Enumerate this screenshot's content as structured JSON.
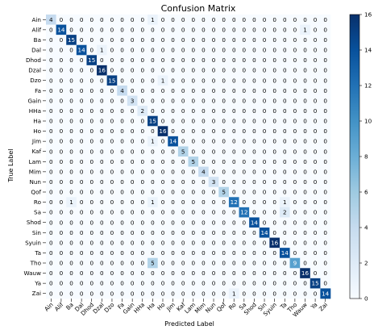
{
  "chart_data": {
    "type": "heatmap",
    "title": "Confusion Matrix",
    "xlabel": "Predicted Label",
    "ylabel": "True Label",
    "labels": [
      "Ain",
      "Alif",
      "Ba",
      "Dal",
      "Dhod",
      "Dzal",
      "Dzo",
      "Fa",
      "Gain",
      "HHa",
      "Ha",
      "Ho",
      "Jim",
      "Kaf",
      "Lam",
      "Mim",
      "Nun",
      "Qof",
      "Ro",
      "Sa",
      "Shod",
      "Sin",
      "Syuin",
      "Ta",
      "Tho",
      "Wauw",
      "Ya",
      "Zai"
    ],
    "matrix": [
      [
        4,
        0,
        0,
        0,
        0,
        0,
        0,
        0,
        0,
        0,
        1,
        0,
        0,
        0,
        0,
        0,
        0,
        0,
        0,
        0,
        0,
        0,
        0,
        0,
        0,
        0,
        0,
        0
      ],
      [
        0,
        14,
        0,
        0,
        0,
        0,
        0,
        0,
        0,
        0,
        0,
        0,
        0,
        0,
        0,
        0,
        0,
        0,
        0,
        0,
        0,
        0,
        0,
        0,
        0,
        1,
        0,
        0
      ],
      [
        0,
        0,
        15,
        0,
        0,
        0,
        0,
        0,
        0,
        0,
        0,
        0,
        0,
        0,
        0,
        0,
        0,
        0,
        0,
        0,
        0,
        0,
        0,
        0,
        0,
        0,
        0,
        0
      ],
      [
        0,
        0,
        0,
        14,
        0,
        1,
        0,
        0,
        0,
        0,
        0,
        0,
        0,
        0,
        0,
        0,
        0,
        0,
        0,
        0,
        0,
        0,
        0,
        0,
        0,
        0,
        0,
        0
      ],
      [
        0,
        0,
        0,
        0,
        15,
        0,
        0,
        0,
        0,
        0,
        0,
        0,
        0,
        0,
        0,
        0,
        0,
        0,
        0,
        0,
        0,
        0,
        0,
        0,
        0,
        0,
        0,
        0
      ],
      [
        0,
        0,
        0,
        0,
        0,
        16,
        0,
        0,
        0,
        0,
        0,
        0,
        0,
        0,
        0,
        0,
        0,
        0,
        0,
        0,
        0,
        0,
        0,
        0,
        0,
        0,
        0,
        0
      ],
      [
        0,
        0,
        0,
        0,
        0,
        0,
        15,
        0,
        0,
        0,
        0,
        1,
        0,
        0,
        0,
        0,
        0,
        0,
        0,
        0,
        0,
        0,
        0,
        0,
        0,
        0,
        0,
        0
      ],
      [
        0,
        0,
        0,
        0,
        0,
        0,
        0,
        4,
        0,
        0,
        0,
        0,
        0,
        0,
        0,
        0,
        0,
        0,
        0,
        0,
        0,
        0,
        0,
        0,
        0,
        0,
        0,
        0
      ],
      [
        0,
        0,
        0,
        0,
        0,
        0,
        0,
        0,
        3,
        0,
        0,
        0,
        0,
        0,
        0,
        0,
        0,
        0,
        0,
        0,
        0,
        0,
        0,
        0,
        0,
        0,
        0,
        0
      ],
      [
        0,
        0,
        0,
        0,
        0,
        0,
        0,
        0,
        0,
        2,
        0,
        0,
        0,
        0,
        0,
        0,
        0,
        0,
        0,
        0,
        0,
        0,
        0,
        0,
        0,
        0,
        0,
        0
      ],
      [
        0,
        0,
        0,
        0,
        0,
        0,
        0,
        0,
        0,
        0,
        15,
        0,
        0,
        0,
        0,
        0,
        0,
        0,
        0,
        0,
        0,
        0,
        0,
        0,
        0,
        0,
        0,
        0
      ],
      [
        0,
        0,
        0,
        0,
        0,
        0,
        0,
        0,
        0,
        0,
        0,
        16,
        0,
        0,
        0,
        0,
        0,
        0,
        0,
        0,
        0,
        0,
        0,
        0,
        0,
        0,
        0,
        0
      ],
      [
        0,
        0,
        0,
        0,
        0,
        0,
        0,
        0,
        0,
        0,
        1,
        0,
        14,
        0,
        0,
        0,
        0,
        0,
        0,
        0,
        0,
        0,
        0,
        0,
        0,
        0,
        0,
        0
      ],
      [
        0,
        0,
        0,
        0,
        0,
        0,
        0,
        0,
        0,
        0,
        0,
        0,
        0,
        5,
        0,
        0,
        0,
        0,
        0,
        0,
        0,
        0,
        0,
        0,
        0,
        0,
        0,
        0
      ],
      [
        0,
        0,
        0,
        0,
        0,
        0,
        0,
        0,
        0,
        0,
        0,
        0,
        0,
        0,
        5,
        0,
        0,
        0,
        0,
        0,
        0,
        0,
        0,
        0,
        0,
        0,
        0,
        0
      ],
      [
        0,
        0,
        0,
        0,
        0,
        0,
        0,
        0,
        0,
        0,
        0,
        0,
        0,
        0,
        0,
        4,
        0,
        0,
        0,
        0,
        0,
        0,
        0,
        0,
        0,
        0,
        0,
        0
      ],
      [
        0,
        0,
        0,
        0,
        0,
        0,
        0,
        0,
        0,
        0,
        0,
        0,
        0,
        0,
        0,
        0,
        3,
        0,
        0,
        0,
        0,
        0,
        0,
        0,
        0,
        0,
        0,
        0
      ],
      [
        0,
        0,
        0,
        0,
        0,
        0,
        0,
        0,
        0,
        0,
        0,
        0,
        0,
        0,
        0,
        0,
        0,
        5,
        0,
        0,
        0,
        0,
        0,
        0,
        0,
        0,
        0,
        0
      ],
      [
        0,
        0,
        1,
        0,
        0,
        0,
        0,
        0,
        0,
        0,
        1,
        0,
        0,
        0,
        0,
        0,
        0,
        0,
        12,
        0,
        0,
        0,
        0,
        1,
        0,
        0,
        0,
        0
      ],
      [
        0,
        0,
        0,
        0,
        0,
        0,
        0,
        0,
        0,
        0,
        0,
        0,
        0,
        0,
        0,
        0,
        0,
        0,
        0,
        12,
        0,
        0,
        0,
        2,
        0,
        0,
        0,
        0
      ],
      [
        0,
        0,
        0,
        0,
        0,
        0,
        0,
        0,
        0,
        0,
        0,
        0,
        0,
        0,
        0,
        0,
        0,
        0,
        0,
        0,
        14,
        0,
        0,
        0,
        0,
        0,
        0,
        0
      ],
      [
        0,
        0,
        0,
        0,
        0,
        0,
        0,
        0,
        0,
        0,
        0,
        0,
        0,
        0,
        0,
        0,
        0,
        0,
        0,
        0,
        0,
        14,
        0,
        0,
        0,
        0,
        0,
        0
      ],
      [
        0,
        0,
        0,
        0,
        0,
        0,
        0,
        0,
        0,
        0,
        0,
        0,
        0,
        0,
        0,
        0,
        0,
        0,
        0,
        0,
        0,
        0,
        16,
        0,
        0,
        0,
        0,
        0
      ],
      [
        0,
        0,
        0,
        0,
        0,
        0,
        0,
        0,
        0,
        0,
        0,
        0,
        0,
        0,
        0,
        0,
        0,
        0,
        0,
        0,
        0,
        0,
        0,
        14,
        0,
        0,
        0,
        0
      ],
      [
        0,
        0,
        0,
        0,
        0,
        0,
        0,
        0,
        0,
        0,
        5,
        0,
        0,
        0,
        0,
        0,
        0,
        0,
        0,
        0,
        0,
        0,
        0,
        0,
        9,
        0,
        0,
        0
      ],
      [
        0,
        0,
        0,
        0,
        0,
        0,
        0,
        0,
        0,
        0,
        0,
        0,
        0,
        0,
        0,
        0,
        0,
        0,
        0,
        0,
        0,
        0,
        0,
        0,
        0,
        16,
        0,
        0
      ],
      [
        0,
        0,
        0,
        0,
        0,
        0,
        0,
        0,
        0,
        0,
        0,
        0,
        0,
        0,
        0,
        0,
        0,
        0,
        0,
        0,
        0,
        0,
        0,
        0,
        0,
        0,
        15,
        0
      ],
      [
        0,
        0,
        0,
        0,
        0,
        0,
        0,
        0,
        0,
        0,
        0,
        0,
        0,
        0,
        0,
        0,
        0,
        0,
        1,
        0,
        0,
        0,
        0,
        0,
        0,
        0,
        0,
        14
      ]
    ],
    "colorbar": {
      "colormap": "Blues",
      "min": 0,
      "max": 16,
      "ticks": [
        0,
        2,
        4,
        6,
        8,
        10,
        12,
        14,
        16
      ]
    }
  }
}
